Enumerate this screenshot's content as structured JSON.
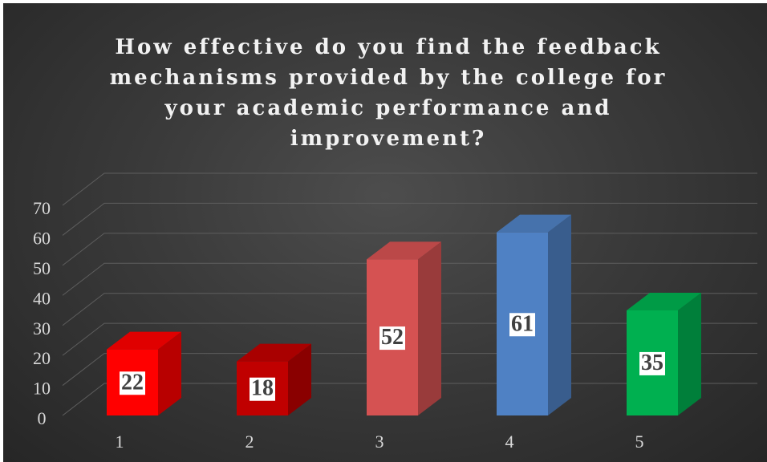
{
  "chart_data": {
    "type": "bar3d",
    "title": "How effective do you find the feedback mechanisms provided by the college for your academic performance and improvement?",
    "categories": [
      "1",
      "2",
      "3",
      "4",
      "5"
    ],
    "values": [
      22,
      18,
      52,
      61,
      35
    ],
    "colors": [
      "#ff0000",
      "#c00000",
      "#d55252",
      "#4f81c4",
      "#00b050"
    ],
    "ylim": [
      0,
      70
    ],
    "yticks": [
      0,
      10,
      20,
      30,
      40,
      50,
      60,
      70
    ],
    "grid": true
  }
}
